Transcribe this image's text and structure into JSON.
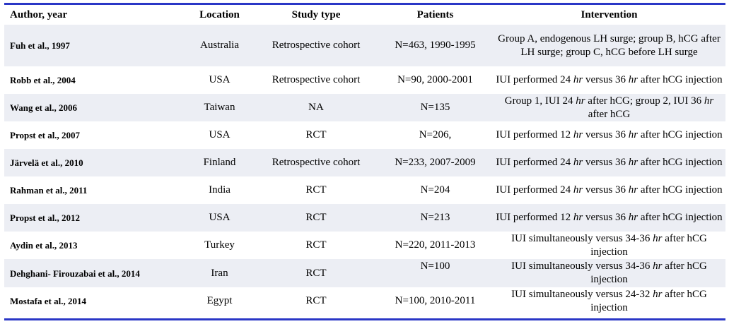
{
  "headers": [
    "Author, year",
    "Location",
    "Study type",
    "Patients",
    "Intervention"
  ],
  "rows": [
    {
      "author": "Fuh et al., 1997",
      "location": "Australia",
      "study": "Retrospective cohort",
      "patients": "N=463, 1990-1995",
      "intervention_html": "Group A, endogenous LH surge; group B, hCG after LH surge; group C, hCG before LH surge"
    },
    {
      "author": "Robb et al., 2004",
      "location": "USA",
      "study": "Retrospective cohort",
      "patients": "N=90, 2000-2001",
      "intervention_html": "IUI performed 24 <em>hr</em> versus 36 <em>hr</em> after hCG injection"
    },
    {
      "author": "Wang et al., 2006",
      "location": "Taiwan",
      "study": "NA",
      "patients": "N=135",
      "intervention_html": "Group 1, IUI 24 <em>hr</em> after hCG; group 2, IUI 36 <em>hr</em> after hCG"
    },
    {
      "author": "Propst et al., 2007",
      "location": "USA",
      "study": "RCT",
      "patients": "N=206,",
      "intervention_html": "IUI performed 12 <em>hr</em> versus 36 <em>hr</em> after hCG injection"
    },
    {
      "author": "Järvelä et al., 2010",
      "location": "Finland",
      "study": "Retrospective cohort",
      "patients": "N=233, 2007-2009",
      "intervention_html": "IUI performed 24 <em>hr</em> versus 36 <em>hr</em> after hCG injection"
    },
    {
      "author": "Rahman et al., 2011",
      "location": "India",
      "study": "RCT",
      "patients": "N=204",
      "intervention_html": "IUI performed 24 <em>hr</em> versus 36 <em>hr</em> after hCG injection"
    },
    {
      "author": "Propst et al., 2012",
      "location": "USA",
      "study": "RCT",
      "patients": "N=213",
      "intervention_html": "IUI performed 12 <em>hr</em> versus 36 <em>hr</em> after hCG injection"
    },
    {
      "author": "Aydin et al., 2013",
      "location": "Turkey",
      "study": "RCT",
      "patients": "N=220, 2011-2013",
      "intervention_html": "IUI simultaneously versus 34-36 <em>hr</em> after hCG injection"
    },
    {
      "author": "Dehghani- Firouzabai et al., 2014",
      "location": "Iran",
      "study": "RCT",
      "patients": "N=100",
      "intervention_html": "IUI simultaneously versus 34-36 <em>hr</em> after hCG injection"
    },
    {
      "author": "Mostafa et al., 2014",
      "location": "Egypt",
      "study": "RCT",
      "patients": "N=100, 2010-2011",
      "intervention_html": "IUI simultaneously versus 24-32 <em>hr</em> after hCG injection"
    }
  ],
  "colors": {
    "rule": "#2a36c6",
    "stripe": "#eceef4"
  }
}
